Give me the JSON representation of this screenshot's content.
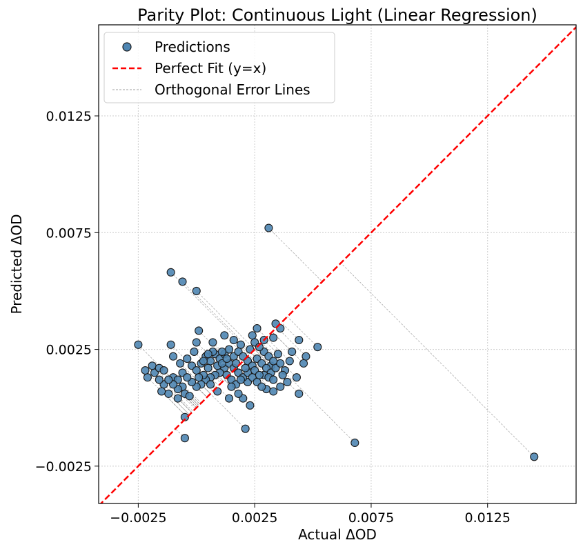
{
  "chart_data": {
    "type": "scatter",
    "title": "Parity Plot: Continuous Light (Linear Regression)",
    "xlabel": "Actual ΔOD",
    "ylabel": "Predicted ΔOD",
    "xlim": [
      -0.0042,
      0.0163
    ],
    "ylim": [
      -0.0041,
      0.0164
    ],
    "xticks": [
      -0.0025,
      0.0025,
      0.0075,
      0.0125
    ],
    "yticks": [
      -0.0025,
      0.0025,
      0.0075,
      0.0125
    ],
    "xtick_labels": [
      "−0.0025",
      "0.0025",
      "0.0075",
      "0.0125"
    ],
    "ytick_labels": [
      "−0.0025",
      "0.0025",
      "0.0075",
      "0.0125"
    ],
    "grid": true,
    "legend_position": "top-left",
    "legend": [
      "Predictions",
      "Perfect Fit (y=x)",
      "Orthogonal Error Lines"
    ],
    "colors": {
      "points": "#4f86b3",
      "point_edge": "#1a1a1a",
      "identity_line": "#ff0000",
      "error_lines": "#808080",
      "grid": "#cccccc"
    },
    "series": [
      {
        "name": "Predictions",
        "points": [
          [
            0.0145,
            -0.0021
          ],
          [
            0.0068,
            -0.0015
          ],
          [
            0.0031,
            0.0077
          ],
          [
            -0.0025,
            0.0027
          ],
          [
            -0.0011,
            0.0058
          ],
          [
            -0.0006,
            0.0054
          ],
          [
            0.0,
            0.005
          ],
          [
            -0.0011,
            0.0027
          ],
          [
            -0.001,
            0.0022
          ],
          [
            0.0001,
            0.0033
          ],
          [
            0.0019,
            0.0027
          ],
          [
            0.0024,
            0.0031
          ],
          [
            0.0026,
            0.0034
          ],
          [
            0.0029,
            0.0024
          ],
          [
            0.0033,
            0.003
          ],
          [
            0.0034,
            0.0036
          ],
          [
            0.0036,
            0.0034
          ],
          [
            0.0044,
            0.0029
          ],
          [
            0.0052,
            0.0026
          ],
          [
            0.0047,
            0.0022
          ],
          [
            0.0041,
            0.0024
          ],
          [
            0.004,
            0.002
          ],
          [
            0.0046,
            0.0019
          ],
          [
            0.0043,
            0.0013
          ],
          [
            0.0038,
            0.0016
          ],
          [
            0.0036,
            0.0009
          ],
          [
            0.0032,
            0.0018
          ],
          [
            0.0029,
            0.0014
          ],
          [
            0.0022,
            0.0011
          ],
          [
            0.002,
            0.0004
          ],
          [
            0.0023,
            0.0001
          ],
          [
            0.003,
            0.0008
          ],
          [
            0.0033,
            0.0007
          ],
          [
            0.0044,
            0.0006
          ],
          [
            0.0021,
            -0.0009
          ],
          [
            -0.0005,
            -0.0004
          ],
          [
            -0.0005,
            -0.0013
          ],
          [
            -0.0005,
            0.0006
          ],
          [
            -0.0003,
            0.0005
          ],
          [
            -0.0008,
            0.0004
          ],
          [
            -0.0012,
            0.0006
          ],
          [
            -0.0014,
            0.001
          ],
          [
            -0.0016,
            0.0012
          ],
          [
            -0.0018,
            0.0015
          ],
          [
            -0.0019,
            0.0018
          ],
          [
            -0.0016,
            0.0017
          ],
          [
            -0.0014,
            0.0016
          ],
          [
            -0.001,
            0.0013
          ],
          [
            -0.0008,
            0.0012
          ],
          [
            -0.0006,
            0.0015
          ],
          [
            -0.0007,
            0.0019
          ],
          [
            -0.0004,
            0.0021
          ],
          [
            -0.0002,
            0.0018
          ],
          [
            0.0,
            0.0016
          ],
          [
            0.0002,
            0.0019
          ],
          [
            0.0004,
            0.0022
          ],
          [
            0.0006,
            0.002
          ],
          [
            0.0008,
            0.0023
          ],
          [
            0.001,
            0.0021
          ],
          [
            0.0012,
            0.0023
          ],
          [
            0.0014,
            0.0025
          ],
          [
            0.0016,
            0.0022
          ],
          [
            0.0018,
            0.0024
          ],
          [
            0.002,
            0.0022
          ],
          [
            0.0022,
            0.002
          ],
          [
            0.0024,
            0.0018
          ],
          [
            0.0026,
            0.0021
          ],
          [
            0.0028,
            0.0019
          ],
          [
            0.003,
            0.0017
          ],
          [
            0.0032,
            0.0015
          ],
          [
            0.0034,
            0.0017
          ],
          [
            0.0036,
            0.0019
          ],
          [
            0.0012,
            0.0017
          ],
          [
            0.001,
            0.0015
          ],
          [
            0.0008,
            0.0014
          ],
          [
            0.0006,
            0.0013
          ],
          [
            0.0004,
            0.0012
          ],
          [
            0.0002,
            0.001
          ],
          [
            0.0,
            0.0009
          ],
          [
            -0.0002,
            0.0011
          ],
          [
            -0.0004,
            0.0013
          ],
          [
            -0.0006,
            0.0009
          ],
          [
            -0.0008,
            0.0008
          ],
          [
            -0.001,
            0.001
          ],
          [
            -0.0012,
            0.0012
          ],
          [
            0.0014,
            0.0019
          ],
          [
            0.0016,
            0.0017
          ],
          [
            0.0018,
            0.0015
          ],
          [
            0.002,
            0.0013
          ],
          [
            0.0022,
            0.0015
          ],
          [
            0.0024,
            0.0013
          ],
          [
            0.0026,
            0.0011
          ],
          [
            0.0028,
            0.0009
          ],
          [
            0.0009,
            0.0018
          ],
          [
            0.0011,
            0.0019
          ],
          [
            0.0005,
            0.0017
          ],
          [
            0.0003,
            0.0014
          ],
          [
            0.0001,
            0.0013
          ],
          [
            0.0013,
            0.0014
          ],
          [
            0.0015,
            0.0012
          ],
          [
            0.0017,
            0.001
          ],
          [
            0.0019,
            0.0012
          ],
          [
            0.0021,
            0.0017
          ],
          [
            0.0023,
            0.0025
          ],
          [
            0.0025,
            0.0028
          ],
          [
            0.0027,
            0.0026
          ],
          [
            0.0029,
            0.0029
          ],
          [
            0.0031,
            0.0022
          ],
          [
            0.0033,
            0.002
          ],
          [
            0.0035,
            0.0023
          ],
          [
            0.0037,
            0.0014
          ],
          [
            0.0039,
            0.0011
          ],
          [
            0.0007,
            0.0024
          ],
          [
            0.0005,
            0.0023
          ],
          [
            0.0003,
            0.002
          ],
          [
            -0.0001,
            0.0024
          ],
          [
            0.0,
            0.0028
          ],
          [
            0.0007,
            0.0028
          ],
          [
            0.0012,
            0.0031
          ],
          [
            0.0016,
            0.0029
          ],
          [
            0.0011,
            0.0024
          ],
          [
            -0.0015,
            0.0007
          ],
          [
            -0.0021,
            0.0013
          ],
          [
            -0.0022,
            0.0016
          ],
          [
            0.0018,
            0.0006
          ],
          [
            0.0015,
            0.0009
          ],
          [
            0.0009,
            0.0007
          ],
          [
            0.0014,
            0.0004
          ],
          [
            0.0025,
            0.0016
          ],
          [
            0.0027,
            0.0014
          ],
          [
            0.0031,
            0.0013
          ],
          [
            0.0033,
            0.0012
          ],
          [
            0.0006,
            0.001
          ],
          [
            0.0013,
            0.0021
          ],
          [
            0.0017,
            0.0019
          ]
        ]
      }
    ]
  }
}
